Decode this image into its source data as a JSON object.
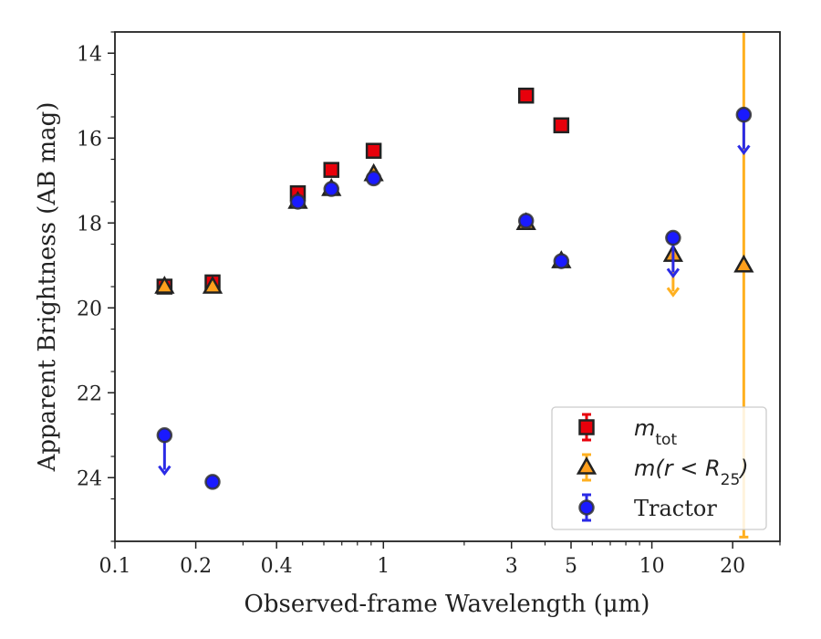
{
  "chart_data": {
    "type": "scatter",
    "title": "",
    "xlabel": "Observed-frame Wavelength (μm)",
    "ylabel": "Apparent Brightness (AB mag)",
    "xscale": "log",
    "xlim": [
      0.1,
      30
    ],
    "ylim": [
      25.5,
      13.5
    ],
    "y_inverted": true,
    "grid": false,
    "legend_position": "lower-right",
    "x_ticks": [
      {
        "value": 0.1,
        "label": "0.1"
      },
      {
        "value": 0.2,
        "label": "0.2"
      },
      {
        "value": 0.4,
        "label": "0.4"
      },
      {
        "value": 1,
        "label": "1"
      },
      {
        "value": 3,
        "label": "3"
      },
      {
        "value": 5,
        "label": "5"
      },
      {
        "value": 10,
        "label": "10"
      },
      {
        "value": 20,
        "label": "20"
      }
    ],
    "y_ticks": [
      {
        "value": 14,
        "label": "14"
      },
      {
        "value": 16,
        "label": "16"
      },
      {
        "value": 18,
        "label": "18"
      },
      {
        "value": 20,
        "label": "20"
      },
      {
        "value": 22,
        "label": "22"
      },
      {
        "value": 24,
        "label": "24"
      }
    ],
    "series": [
      {
        "name": "m_tot",
        "legend_main": "m",
        "legend_sub": "tot",
        "marker": "square",
        "color": "#e8000b",
        "errcolor": "#e8000b",
        "points": [
          {
            "x": 0.153,
            "y": 19.5
          },
          {
            "x": 0.231,
            "y": 19.4
          },
          {
            "x": 0.48,
            "y": 17.3
          },
          {
            "x": 0.64,
            "y": 16.75
          },
          {
            "x": 0.92,
            "y": 16.3
          },
          {
            "x": 3.4,
            "y": 15.0
          },
          {
            "x": 4.6,
            "y": 15.7
          }
        ]
      },
      {
        "name": "m(r<R25)",
        "legend_main": "m(r < R",
        "legend_sub": "25",
        "legend_tail": ")",
        "marker": "triangle",
        "color": "#ff9f1c",
        "errcolor": "#ffb020",
        "points": [
          {
            "x": 0.153,
            "y": 19.5
          },
          {
            "x": 0.231,
            "y": 19.5
          },
          {
            "x": 0.48,
            "y": 17.5
          },
          {
            "x": 0.64,
            "y": 17.2
          },
          {
            "x": 0.92,
            "y": 16.85
          },
          {
            "x": 3.4,
            "y": 18.0
          },
          {
            "x": 4.6,
            "y": 18.9
          },
          {
            "x": 12.0,
            "y": 18.75,
            "upper_limit": true,
            "arrow_to": 19.7
          },
          {
            "x": 22.0,
            "y": 19.0,
            "error_low": 13.5,
            "error_high": 25.4
          }
        ]
      },
      {
        "name": "Tractor",
        "legend_main": "Tractor",
        "marker": "circle",
        "color": "#1a1aff",
        "errcolor": "#2a2ae6",
        "points": [
          {
            "x": 0.153,
            "y": 23.0,
            "upper_limit": true,
            "arrow_to": 23.9
          },
          {
            "x": 0.231,
            "y": 24.1
          },
          {
            "x": 0.48,
            "y": 17.5
          },
          {
            "x": 0.64,
            "y": 17.2
          },
          {
            "x": 0.92,
            "y": 16.95
          },
          {
            "x": 3.4,
            "y": 17.95
          },
          {
            "x": 4.6,
            "y": 18.9
          },
          {
            "x": 12.0,
            "y": 18.35,
            "upper_limit": true,
            "arrow_to": 19.25
          },
          {
            "x": 22.0,
            "y": 15.45,
            "upper_limit": true,
            "arrow_to": 16.35
          }
        ]
      }
    ]
  }
}
